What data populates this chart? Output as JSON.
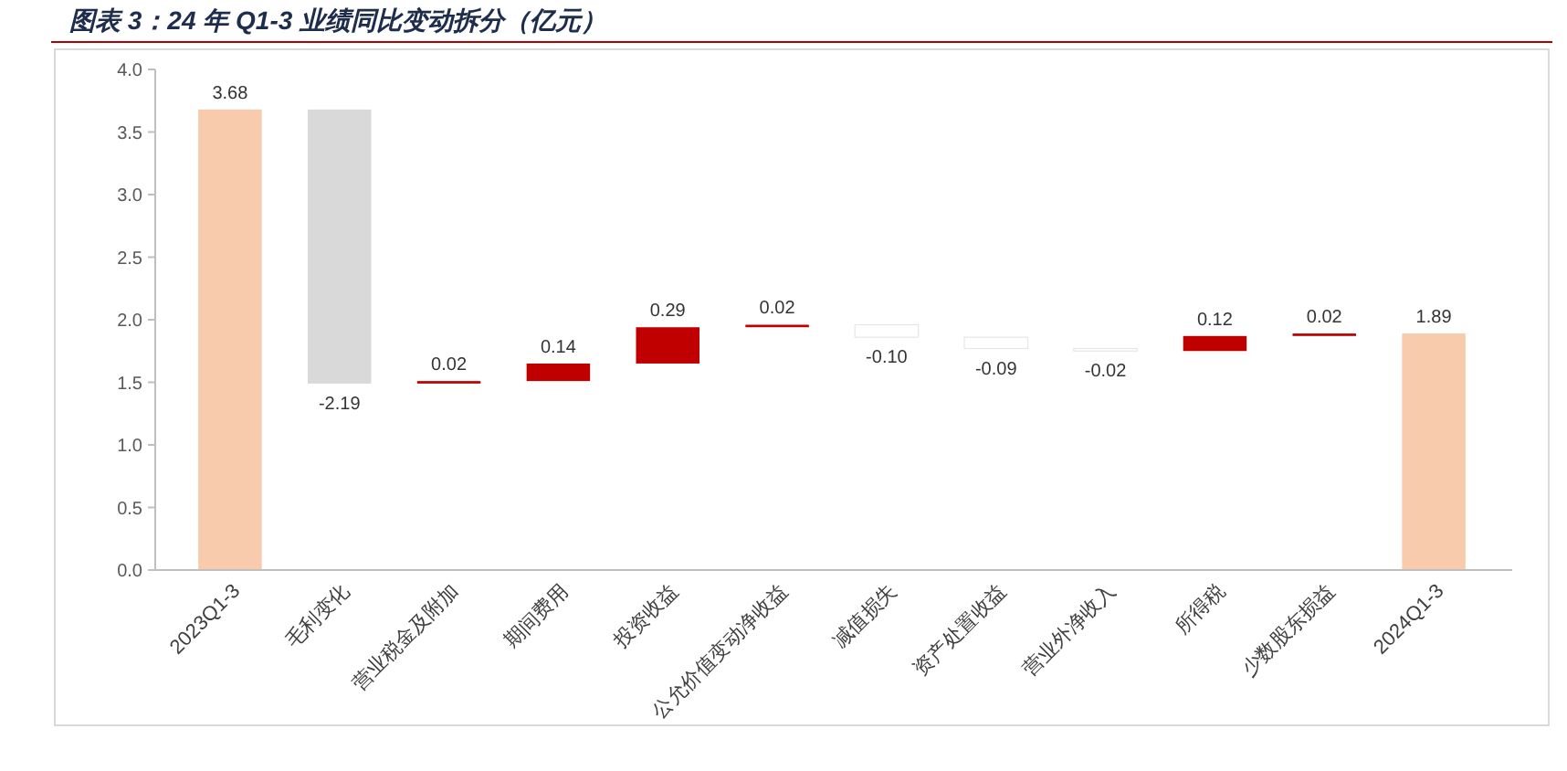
{
  "chart_data": {
    "type": "bar",
    "title": "图表 3：24 年 Q1-3 业绩同比变动拆分（亿元）",
    "categories": [
      "2023Q1-3",
      "毛利变化",
      "营业税金及附加",
      "期间费用",
      "投资收益",
      "公允价值变动净收益",
      "减值损失",
      "资产处置收益",
      "营业外净收入",
      "所得税",
      "少数股东损益",
      "2024Q1-3"
    ],
    "values": [
      3.68,
      -2.19,
      0.02,
      0.14,
      0.29,
      0.02,
      -0.1,
      -0.09,
      -0.02,
      0.12,
      0.02,
      1.89
    ],
    "base": [
      0,
      3.68,
      1.49,
      1.51,
      1.65,
      1.94,
      1.96,
      1.86,
      1.77,
      1.75,
      1.87,
      0
    ],
    "colors": [
      "#f8cbad",
      "#d9d9d9",
      "#c00000",
      "#c00000",
      "#c00000",
      "#c00000",
      "#ffffff",
      "#ffffff",
      "#ffffff",
      "#c00000",
      "#c00000",
      "#f8cbad"
    ],
    "value_labels": [
      "3.68",
      "-2.19",
      "0.02",
      "0.14",
      "0.29",
      "0.02",
      "-0.10",
      "-0.09",
      "-0.02",
      "0.12",
      "0.02",
      "1.89"
    ],
    "ylim": [
      0,
      4
    ],
    "yticks": [
      {
        "value": 0,
        "label": "0.0"
      },
      {
        "value": 0.5,
        "label": "0.5"
      },
      {
        "value": 1,
        "label": "1.0"
      },
      {
        "value": 1.5,
        "label": "1.5"
      },
      {
        "value": 2,
        "label": "2.0"
      },
      {
        "value": 2.5,
        "label": "2.5"
      },
      {
        "value": 3,
        "label": "3.0"
      },
      {
        "value": 3.5,
        "label": "3.5"
      },
      {
        "value": 4,
        "label": "4.0"
      }
    ],
    "grid": false
  }
}
